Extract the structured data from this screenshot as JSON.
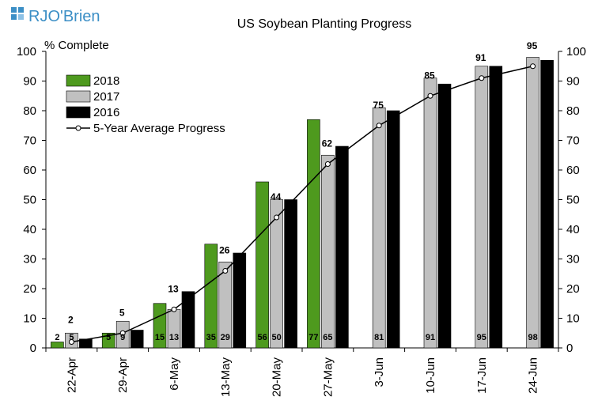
{
  "brand": {
    "logo_text": "RJO'Brien",
    "color": "#3c8fc6"
  },
  "chart_data": {
    "type": "bar",
    "title": "US Soybean Planting Progress",
    "ylabel": "% Complete",
    "xlabel": "",
    "ylim": [
      0,
      100
    ],
    "yticks": [
      0,
      10,
      20,
      30,
      40,
      50,
      60,
      70,
      80,
      90,
      100
    ],
    "grid": false,
    "legend_position": "top-left",
    "categories": [
      "22-Apr",
      "29-Apr",
      "6-May",
      "13-May",
      "20-May",
      "27-May",
      "3-Jun",
      "10-Jun",
      "17-Jun",
      "24-Jun"
    ],
    "series": [
      {
        "name": "2018",
        "type": "bar",
        "color": "#4e9a1e",
        "values": [
          2,
          5,
          15,
          35,
          56,
          77,
          null,
          null,
          null,
          null
        ]
      },
      {
        "name": "2017",
        "type": "bar",
        "color": "#c0c0c0",
        "values": [
          5,
          9,
          13,
          29,
          50,
          65,
          81,
          91,
          95,
          98
        ]
      },
      {
        "name": "2016",
        "type": "bar",
        "color": "#000000",
        "values": [
          3,
          6,
          19,
          32,
          50,
          68,
          80,
          89,
          95,
          97
        ]
      },
      {
        "name": "5-Year Average Progress",
        "type": "line",
        "color": "#000000",
        "values": [
          2,
          5,
          13,
          26,
          44,
          62,
          75,
          85,
          91,
          95
        ]
      }
    ]
  }
}
